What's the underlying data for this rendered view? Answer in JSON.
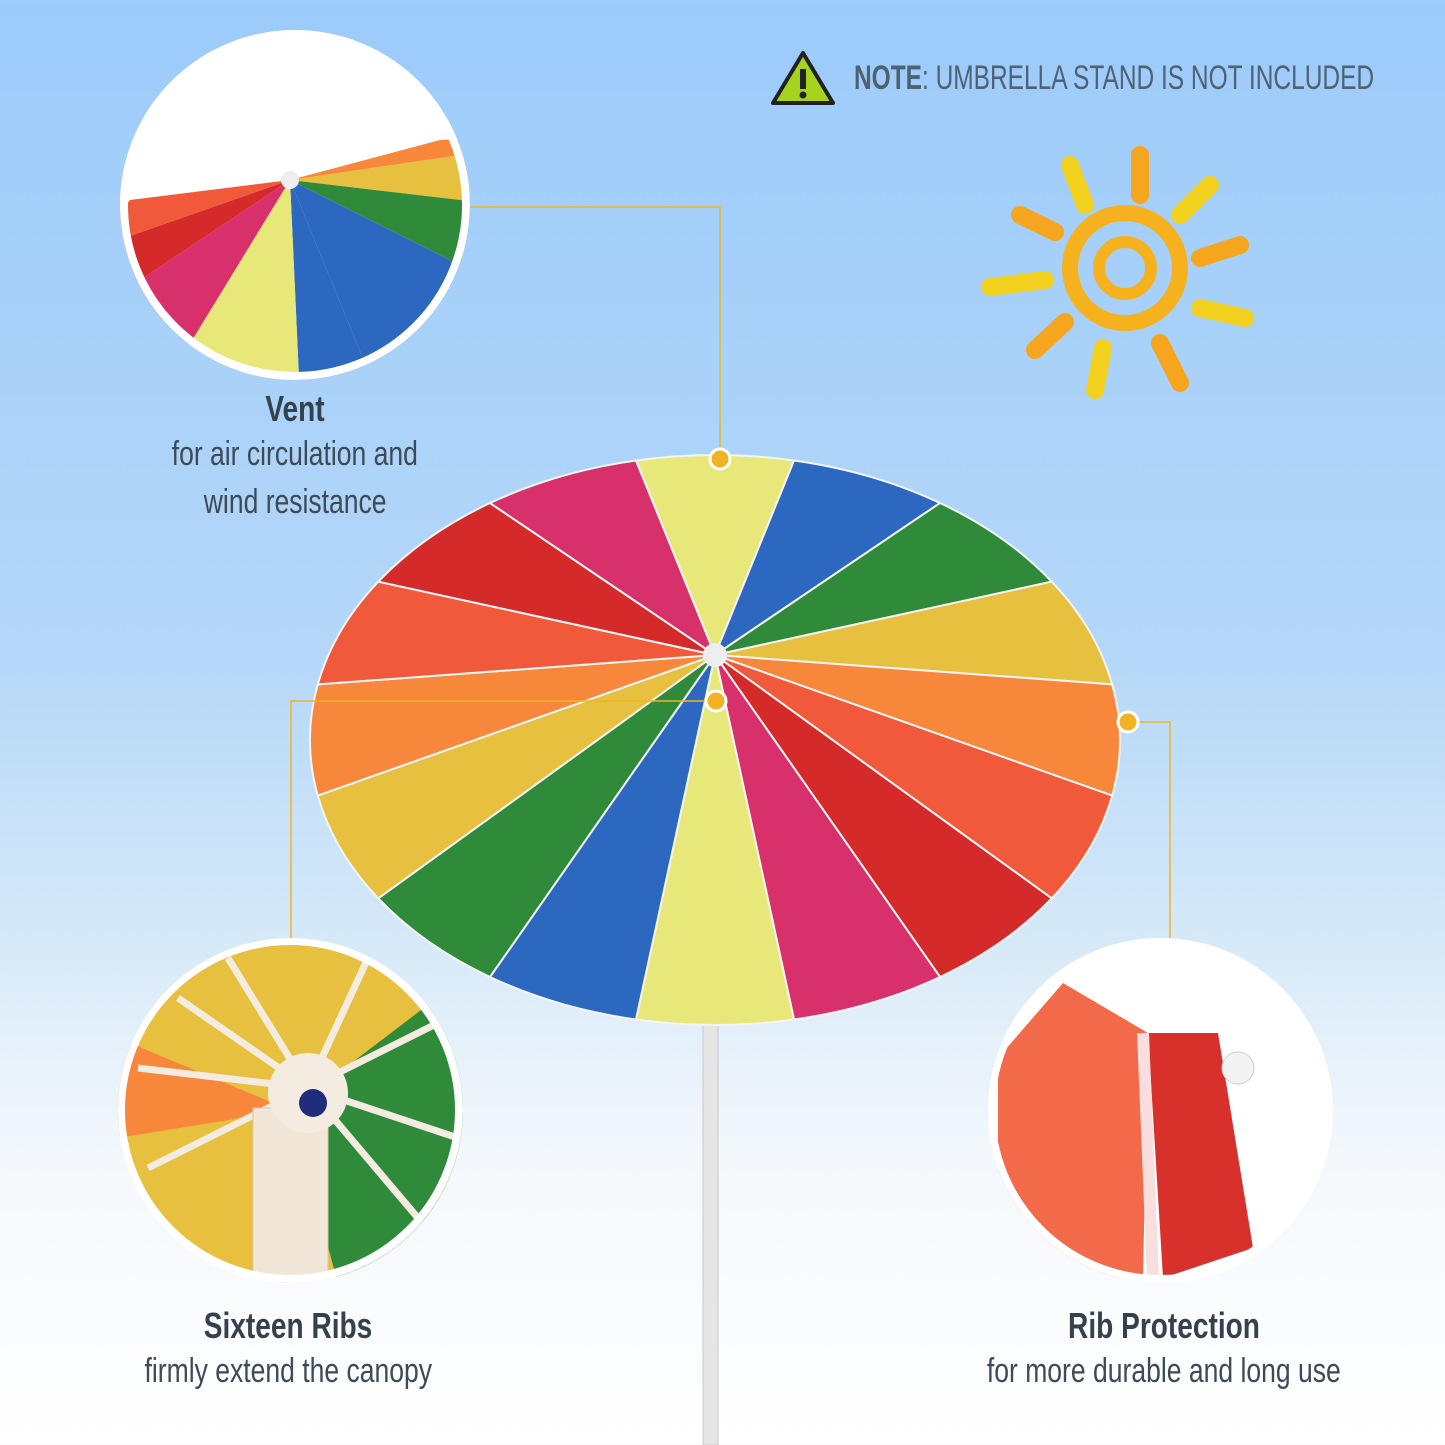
{
  "note": {
    "icon": "warning-icon",
    "label": "NOTE",
    "text": ": UMBRELLA STAND IS NOT INCLUDED"
  },
  "features": [
    {
      "title": "Vent",
      "desc_lines": [
        "for air circulation and",
        "wind resistance"
      ]
    },
    {
      "title": "Sixteen Ribs",
      "desc_lines": [
        "firmly extend the canopy"
      ]
    },
    {
      "title": "Rib Protection",
      "desc_lines": [
        "for more durable and long use"
      ]
    }
  ],
  "colors": {
    "accent_line": "#f1b323",
    "canopy": [
      "#e8e87a",
      "#2c68c0",
      "#2f8a3a",
      "#e8c040",
      "#f7873a",
      "#f05a3a",
      "#d42a2a",
      "#d8306a",
      "#e8e87a",
      "#2c68c0",
      "#2f8a3a",
      "#e8c040",
      "#f7873a",
      "#f05a3a",
      "#d42a2a",
      "#d8306a"
    ],
    "sun": "#f5b21e"
  }
}
